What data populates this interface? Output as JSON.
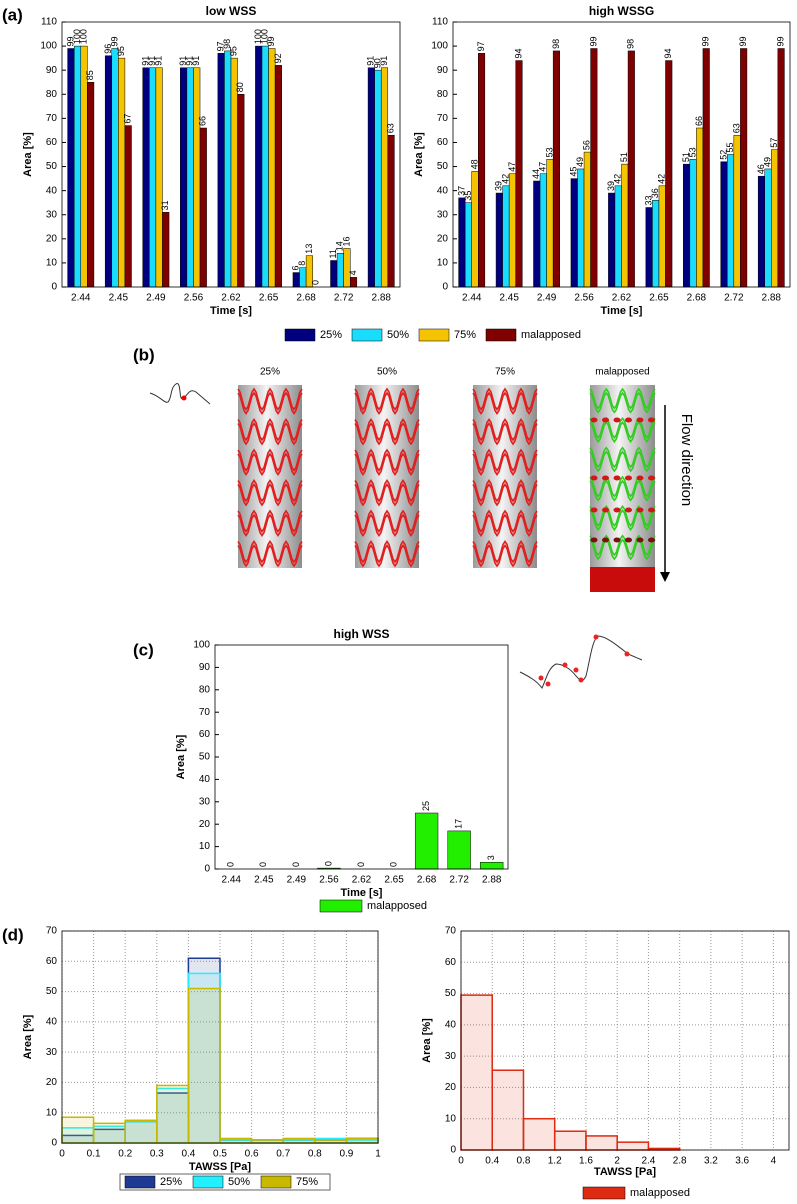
{
  "panel_labels": [
    "(a)",
    "(b)",
    "(c)",
    "(d)"
  ],
  "stent_panel": {
    "labels": [
      "25%",
      "50%",
      "75%",
      "malapposed"
    ],
    "flow_label": "Flow direction"
  },
  "chart_data": [
    {
      "type": "bar",
      "title": "low WSS",
      "x_label": "Time [s]",
      "y_label": "Area [%]",
      "categories": [
        "2.44",
        "2.45",
        "2.49",
        "2.56",
        "2.62",
        "2.65",
        "2.68",
        "2.72",
        "2.88"
      ],
      "ylim": [
        0,
        110
      ],
      "yticks": [
        0,
        10,
        20,
        30,
        40,
        50,
        60,
        70,
        80,
        90,
        100,
        110
      ],
      "grid": false,
      "series": [
        {
          "name": "25%",
          "color": "#00007f",
          "values": [
            99,
            96,
            91,
            91,
            97,
            100,
            6,
            11,
            91
          ]
        },
        {
          "name": "50%",
          "color": "#19dcff",
          "values": [
            100,
            99,
            91,
            91,
            98,
            100,
            8,
            14,
            90
          ]
        },
        {
          "name": "75%",
          "color": "#f5c400",
          "values": [
            100,
            95,
            91,
            91,
            95,
            99,
            13,
            16,
            91
          ]
        },
        {
          "name": "malapposed",
          "color": "#800000",
          "values": [
            85,
            67,
            31,
            66,
            80,
            92,
            0,
            4,
            63
          ]
        }
      ]
    },
    {
      "type": "bar",
      "title": "high WSSG",
      "x_label": "Time [s]",
      "y_label": "Area [%]",
      "categories": [
        "2.44",
        "2.45",
        "2.49",
        "2.56",
        "2.62",
        "2.65",
        "2.68",
        "2.72",
        "2.88"
      ],
      "ylim": [
        0,
        110
      ],
      "yticks": [
        0,
        10,
        20,
        30,
        40,
        50,
        60,
        70,
        80,
        90,
        100,
        110
      ],
      "grid": false,
      "series": [
        {
          "color": "#00007f",
          "values": [
            37,
            39,
            44,
            45,
            39,
            33,
            51,
            52,
            46
          ]
        },
        {
          "color": "#19dcff",
          "values": [
            35,
            42,
            47,
            49,
            42,
            36,
            53,
            55,
            49
          ]
        },
        {
          "color": "#f5c400",
          "values": [
            48,
            47,
            53,
            56,
            51,
            42,
            66,
            63,
            57
          ]
        },
        {
          "color": "#800000",
          "values": [
            97,
            94,
            98,
            99,
            98,
            94,
            99,
            99,
            99
          ]
        }
      ]
    },
    {
      "type": "bar",
      "title": "high WSS",
      "x_label": "Time [s]",
      "y_label": "Area [%]",
      "categories": [
        "2.44",
        "2.45",
        "2.49",
        "2.56",
        "2.62",
        "2.65",
        "2.68",
        "2.72",
        "2.88"
      ],
      "ylim": [
        0,
        100
      ],
      "yticks": [
        0,
        10,
        20,
        30,
        40,
        50,
        60,
        70,
        80,
        90,
        100
      ],
      "grid": false,
      "series": [
        {
          "name": "malapposed",
          "color": "#22ee00",
          "values": [
            0,
            0,
            0,
            0.4,
            0,
            0,
            25,
            17,
            3
          ],
          "value_labels": [
            "0",
            "0",
            "0",
            "0",
            "0",
            "0",
            "25",
            "17",
            "3"
          ]
        }
      ]
    },
    {
      "type": "histogram",
      "x_label": "TAWSS [Pa]",
      "y_label": "Area [%]",
      "bins": [
        0,
        0.1,
        0.2,
        0.3,
        0.4,
        0.5,
        0.6,
        0.7,
        0.8,
        0.9,
        1
      ],
      "xlim": [
        0,
        1
      ],
      "xticks": [
        0,
        0.1,
        0.2,
        0.3,
        0.4,
        0.5,
        0.6,
        0.7,
        0.8,
        0.9,
        1
      ],
      "ylim": [
        0,
        70
      ],
      "yticks": [
        0,
        10,
        20,
        30,
        40,
        50,
        60,
        70
      ],
      "grid": true,
      "series": [
        {
          "name": "25%",
          "color": "#1f3a93",
          "values": [
            2.5,
            4.5,
            7,
            16.5,
            61,
            1,
            1,
            1,
            1,
            1.5
          ]
        },
        {
          "name": "50%",
          "color": "#22f0ff",
          "values": [
            5,
            5.5,
            7,
            18,
            56,
            1,
            1,
            1,
            1.5,
            1
          ]
        },
        {
          "name": "75%",
          "color": "#c8b800",
          "values": [
            8.5,
            6.5,
            7.5,
            19,
            51,
            1.5,
            1,
            1.5,
            1,
            1.5
          ]
        }
      ]
    },
    {
      "type": "histogram",
      "x_label": "TAWSS [Pa]",
      "y_label": "Area [%]",
      "bins": [
        0,
        0.4,
        0.8,
        1.2,
        1.6,
        2,
        2.4,
        2.8
      ],
      "xlim": [
        0,
        4.2
      ],
      "xticks": [
        0,
        0.4,
        0.8,
        1.2,
        1.6,
        2,
        2.4,
        2.8,
        3.2,
        3.6,
        4
      ],
      "ylim": [
        0,
        70
      ],
      "yticks": [
        0,
        10,
        20,
        30,
        40,
        50,
        60,
        70
      ],
      "grid": true,
      "series": [
        {
          "name": "malapposed",
          "color": "#dd2a10",
          "values": [
            49.5,
            25.5,
            10,
            6,
            4.5,
            2.5,
            0.5
          ]
        }
      ]
    }
  ]
}
